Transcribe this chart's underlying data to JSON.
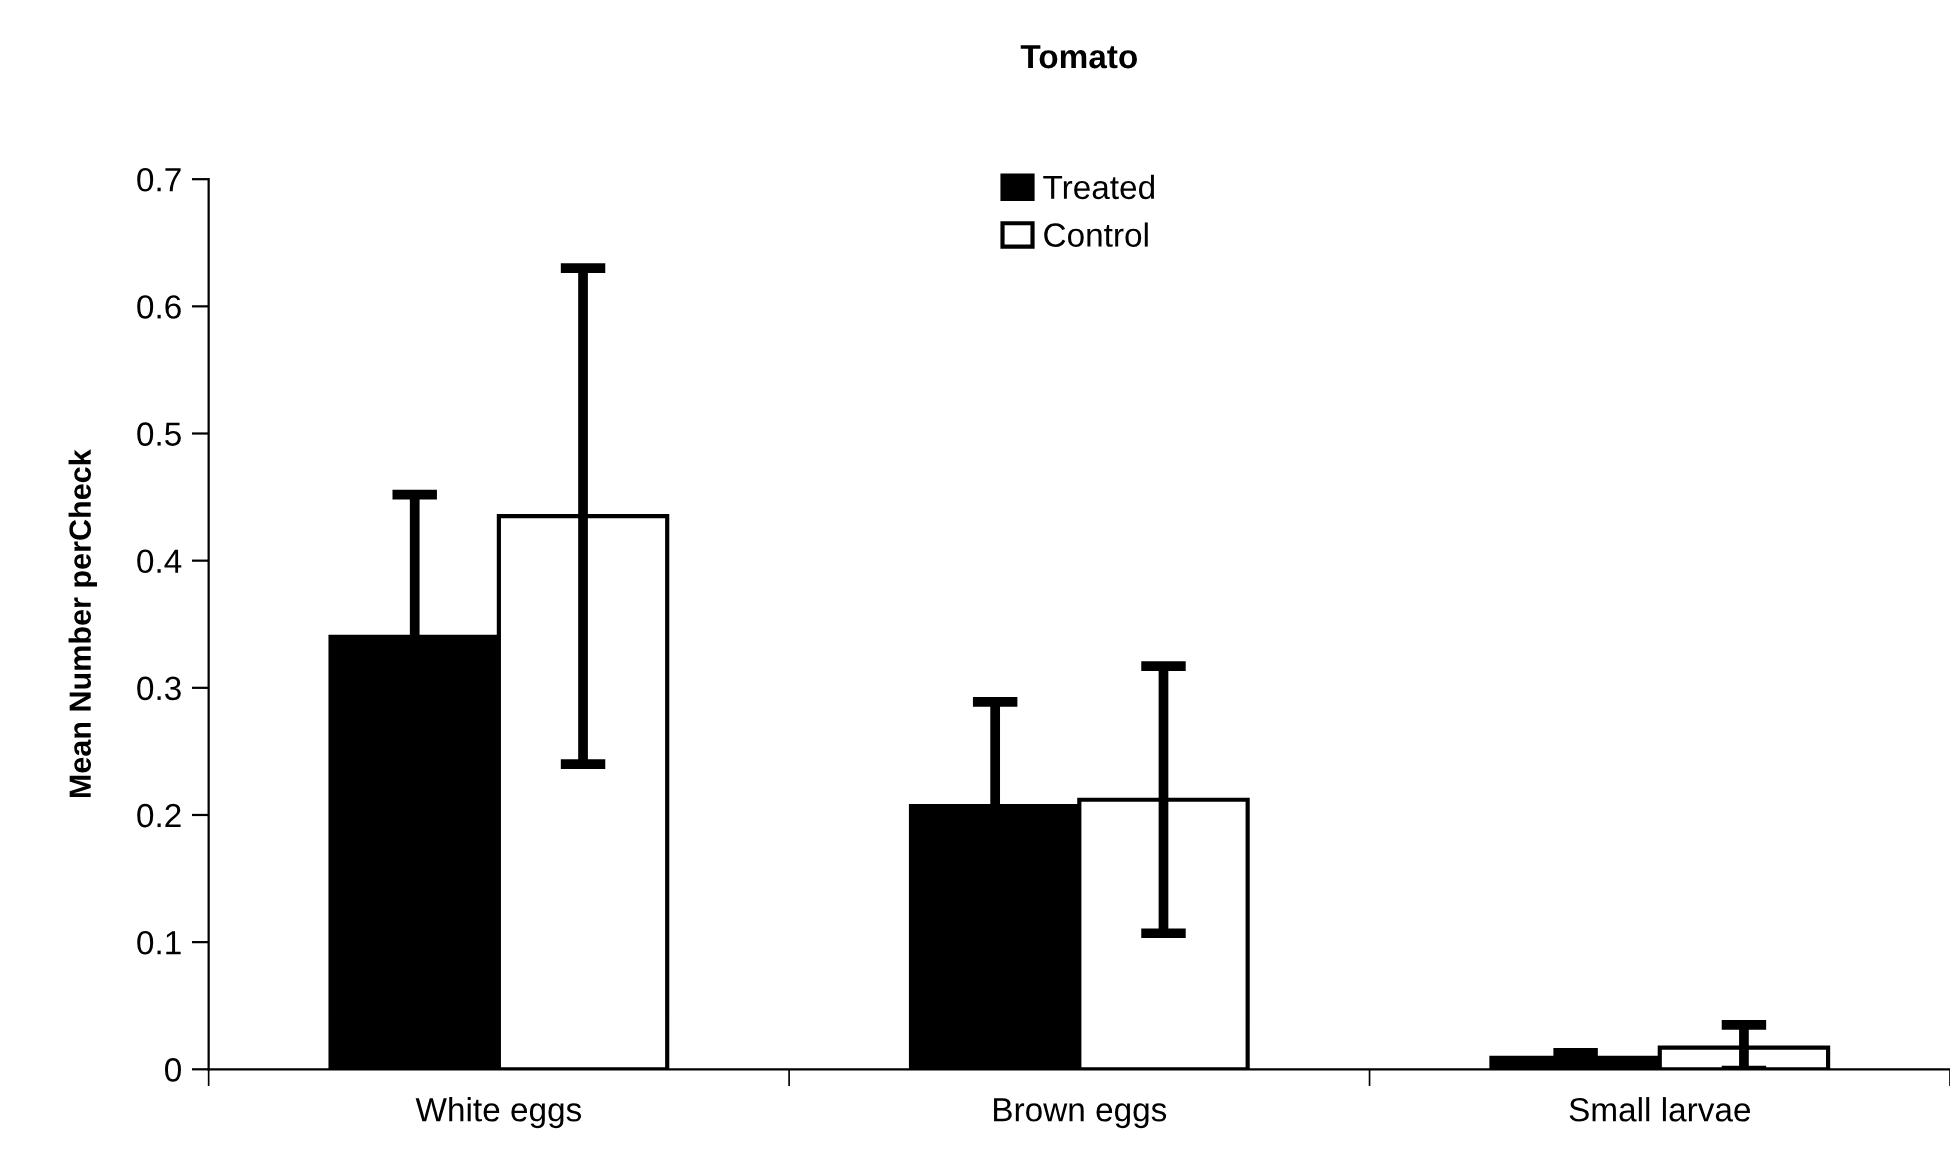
{
  "chart_data": {
    "type": "bar",
    "title": "Tomato",
    "ylabel": "Mean Number perCheck",
    "categories": [
      "White eggs",
      "Brown eggs",
      "Small larvae"
    ],
    "series": [
      {
        "name": "Treated",
        "color": "#000000",
        "values": [
          0.34,
          0.207,
          0.009
        ],
        "errors": [
          0.112,
          0.082,
          0.004
        ]
      },
      {
        "name": "Control",
        "color": "#ffffff",
        "values": [
          0.435,
          0.212,
          0.017
        ],
        "errors": [
          0.195,
          0.105,
          0.018
        ]
      }
    ],
    "ylim": [
      0,
      0.7
    ],
    "yticks": [
      0,
      0.1,
      0.2,
      0.3,
      0.4,
      0.5,
      0.6,
      0.7
    ],
    "grid": false,
    "legend": "top"
  }
}
